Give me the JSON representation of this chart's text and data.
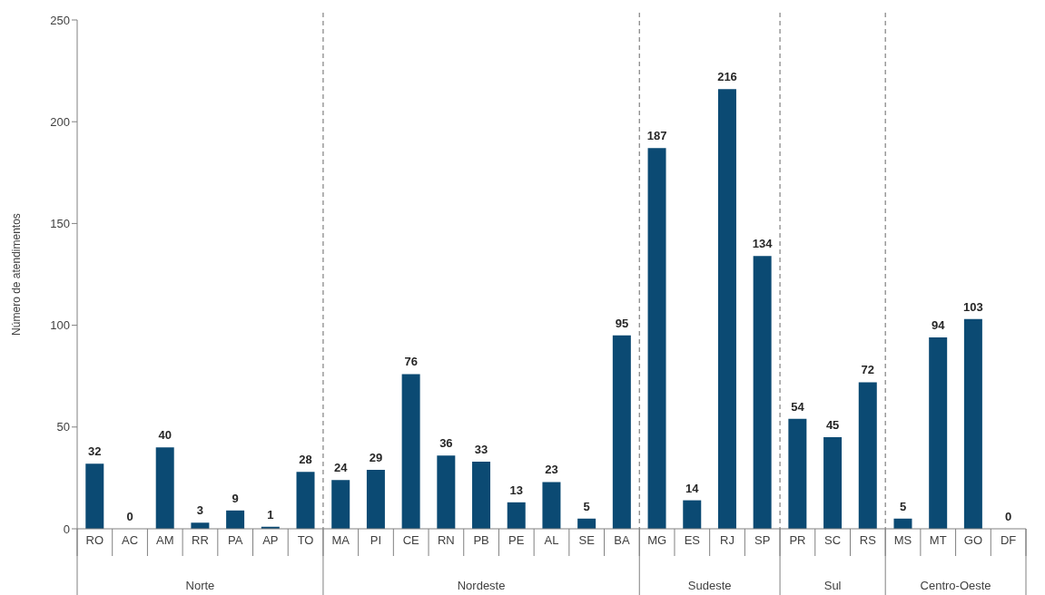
{
  "chart_data": {
    "type": "bar",
    "ylabel": "Número de atendimentos",
    "categories": [
      "RO",
      "AC",
      "AM",
      "RR",
      "PA",
      "AP",
      "TO",
      "MA",
      "PI",
      "CE",
      "RN",
      "PB",
      "PE",
      "AL",
      "SE",
      "BA",
      "MG",
      "ES",
      "RJ",
      "SP",
      "PR",
      "SC",
      "RS",
      "MS",
      "MT",
      "GO",
      "DF"
    ],
    "values": [
      32,
      0,
      40,
      3,
      9,
      1,
      28,
      24,
      29,
      76,
      36,
      33,
      13,
      23,
      5,
      95,
      187,
      14,
      216,
      134,
      54,
      45,
      72,
      5,
      94,
      103,
      0
    ],
    "color": "#0b4a73",
    "ylim": [
      0,
      250
    ],
    "yticks": [
      0,
      50,
      100,
      150,
      200,
      250
    ],
    "grid": false,
    "data_labels": true,
    "annotations": [
      "Norte",
      "Nordeste",
      "Sudeste",
      "Sul",
      "Centro-Oeste"
    ]
  }
}
